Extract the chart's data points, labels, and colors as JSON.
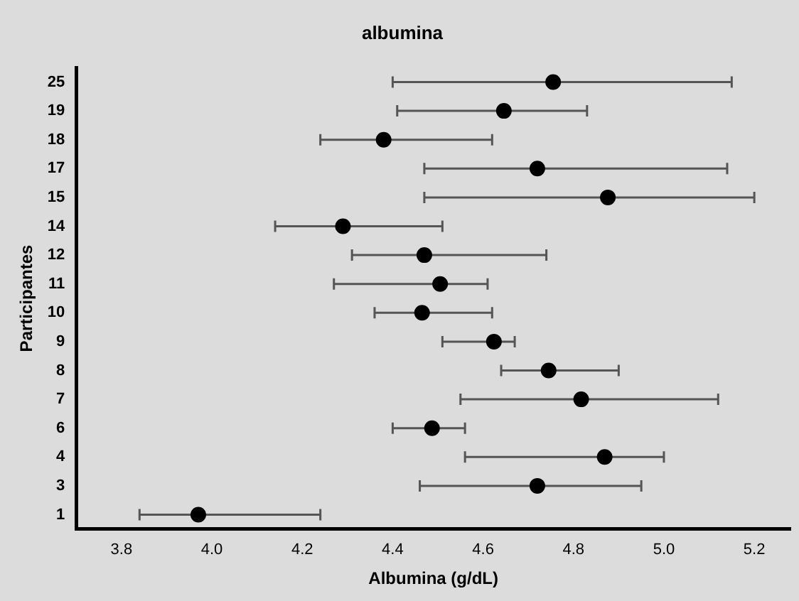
{
  "chart_data": {
    "type": "scatter",
    "title": "albumina",
    "xlabel": "Albumina (g/dL)",
    "ylabel": "Participantes",
    "orientation": "horizontal",
    "categories": [
      "25",
      "19",
      "18",
      "17",
      "15",
      "14",
      "12",
      "11",
      "10",
      "9",
      "8",
      "7",
      "6",
      "4",
      "3",
      "1"
    ],
    "values": [
      4.755,
      4.646,
      4.38,
      4.72,
      4.876,
      4.29,
      4.47,
      4.505,
      4.465,
      4.624,
      4.745,
      4.817,
      4.487,
      4.869,
      4.72,
      3.97
    ],
    "errors": [
      [
        4.4,
        5.15
      ],
      [
        4.41,
        4.83
      ],
      [
        4.24,
        4.62
      ],
      [
        4.47,
        5.14
      ],
      [
        4.47,
        5.2
      ],
      [
        4.14,
        4.51
      ],
      [
        4.31,
        4.74
      ],
      [
        4.27,
        4.61
      ],
      [
        4.36,
        4.62
      ],
      [
        4.51,
        4.67
      ],
      [
        4.64,
        4.9
      ],
      [
        4.55,
        5.12
      ],
      [
        4.4,
        4.56
      ],
      [
        4.56,
        5.0
      ],
      [
        4.46,
        4.95
      ],
      [
        3.84,
        4.24
      ]
    ],
    "color": "#000000",
    "marker": "circle",
    "xlim": [
      3.7,
      5.28
    ],
    "xticks": [
      {
        "value": 3.8,
        "label": "3.8"
      },
      {
        "value": 4.0,
        "label": "4.0"
      },
      {
        "value": 4.2,
        "label": "4.2"
      },
      {
        "value": 4.4,
        "label": "4.4"
      },
      {
        "value": 4.6,
        "label": "4.6"
      },
      {
        "value": 4.8,
        "label": "4.8"
      },
      {
        "value": 5.0,
        "label": "5.0"
      },
      {
        "value": 5.2,
        "label": "5.2"
      }
    ]
  }
}
